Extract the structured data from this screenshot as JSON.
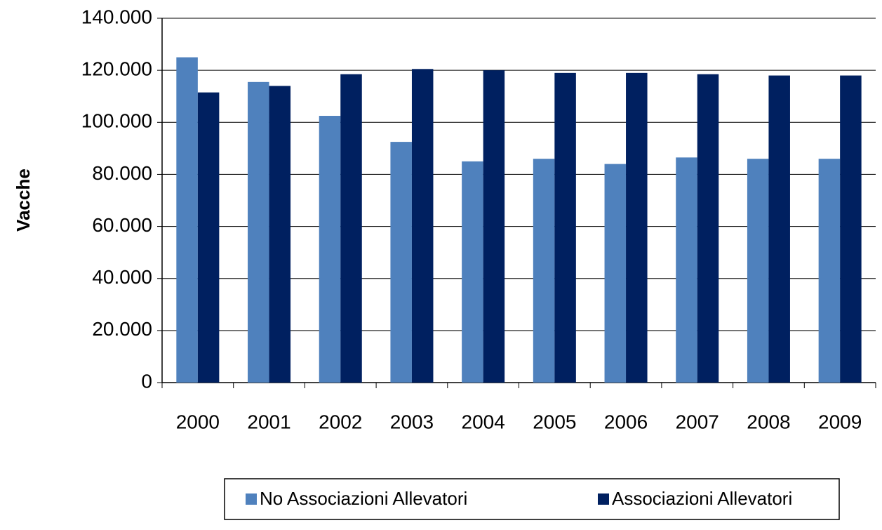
{
  "chart_data": {
    "type": "bar",
    "ylabel": "Vacche",
    "categories": [
      "2000",
      "2001",
      "2002",
      "2003",
      "2004",
      "2005",
      "2006",
      "2007",
      "2008",
      "2009"
    ],
    "series": [
      {
        "name": "No Associazioni Allevatori",
        "color": "#4f81bd",
        "values": [
          125000,
          115500,
          102500,
          92500,
          85000,
          86000,
          84000,
          86500,
          86000,
          86000
        ]
      },
      {
        "name": "Associazioni Allevatori",
        "color": "#002060",
        "values": [
          111500,
          114000,
          118500,
          120500,
          120000,
          119000,
          119000,
          118500,
          118000,
          118000
        ]
      }
    ],
    "ylim": [
      0,
      140000
    ],
    "yticks": [
      0,
      {
        "value": 20000,
        "label": "20.000"
      },
      {
        "value": 40000,
        "label": "40.000"
      },
      {
        "value": 60000,
        "label": "60.000"
      },
      {
        "value": 80000,
        "label": "80.000"
      },
      {
        "value": 100000,
        "label": "100.000"
      },
      {
        "value": 120000,
        "label": "120.000"
      },
      {
        "value": 140000,
        "label": "140.000"
      }
    ],
    "grid": true,
    "legend": "bottom"
  }
}
